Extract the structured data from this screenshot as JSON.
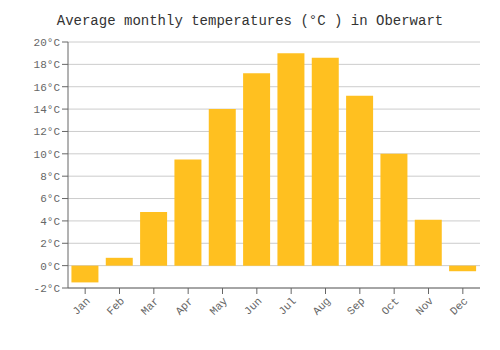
{
  "chart_data": {
    "type": "bar",
    "title": "Average monthly temperatures (°C ) in Oberwart",
    "categories": [
      "Jan",
      "Feb",
      "Mar",
      "Apr",
      "May",
      "Jun",
      "Jul",
      "Aug",
      "Sep",
      "Oct",
      "Nov",
      "Dec"
    ],
    "values": [
      -1.5,
      0.7,
      4.8,
      9.5,
      14.0,
      17.2,
      19.0,
      18.6,
      15.2,
      10.0,
      4.1,
      -0.5
    ],
    "color": "#FFC020",
    "ylim": [
      -2,
      20
    ],
    "yticks": [
      {
        "value": -2,
        "label": "-2°C"
      },
      {
        "value": 0,
        "label": "0°C"
      },
      {
        "value": 2,
        "label": "2°C"
      },
      {
        "value": 4,
        "label": "4°C"
      },
      {
        "value": 6,
        "label": "6°C"
      },
      {
        "value": 8,
        "label": "8°C"
      },
      {
        "value": 10,
        "label": "10°C"
      },
      {
        "value": 12,
        "label": "12°C"
      },
      {
        "value": 14,
        "label": "14°C"
      },
      {
        "value": 16,
        "label": "16°C"
      },
      {
        "value": 18,
        "label": "18°C"
      },
      {
        "value": 20,
        "label": "20°C"
      }
    ],
    "grid": true
  }
}
